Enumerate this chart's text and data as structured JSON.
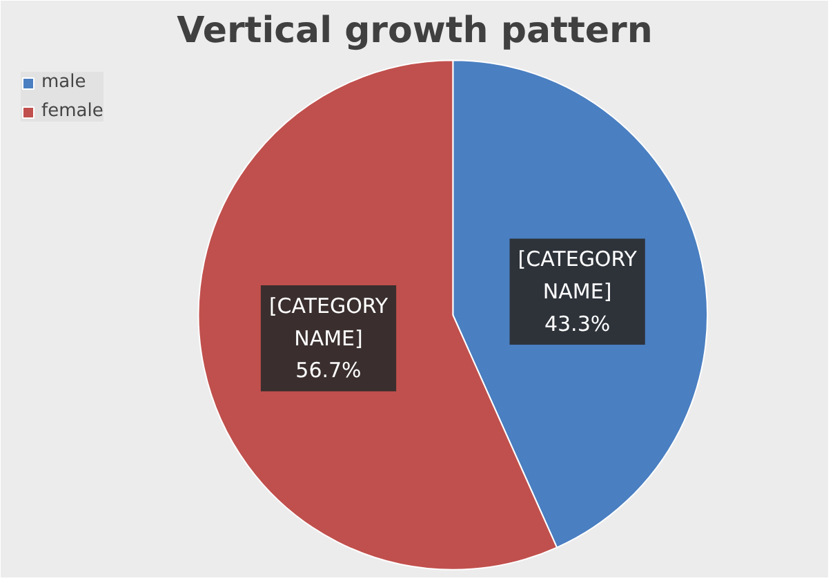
{
  "chart_data": {
    "type": "pie",
    "title": "Vertical growth pattern",
    "categories": [
      "male",
      "female"
    ],
    "values": [
      43.3,
      56.7
    ],
    "colors": [
      "#4a7fc1",
      "#c0504d"
    ],
    "value_labels": [
      "[CATEGORY NAME] 43.3%",
      "[CATEGORY NAME] 56.7%"
    ],
    "legend": "top left"
  }
}
